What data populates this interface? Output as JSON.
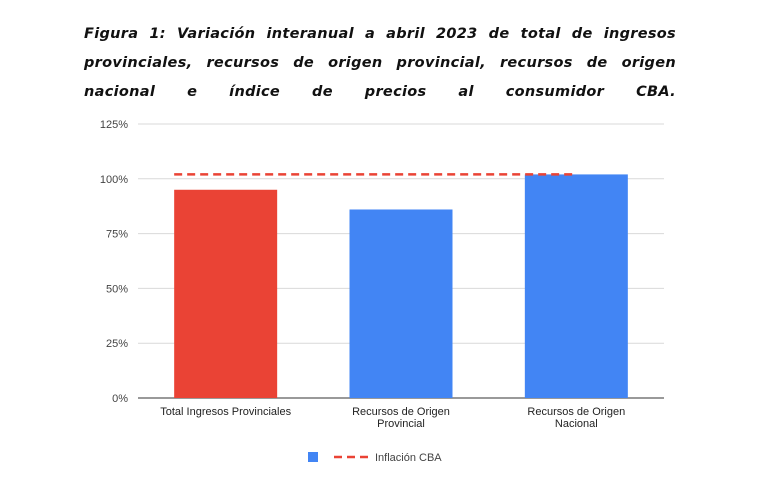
{
  "caption": "Figura 1: Variación interanual a abril 2023 de total de ingresos provinciales, recursos de origen provincial, recursos de origen nacional e índice de precios al consumidor CBA.",
  "chart_data": {
    "type": "bar",
    "categories": [
      [
        "Total Ingresos Provinciales"
      ],
      [
        "Recursos de Origen",
        "Provincial"
      ],
      [
        "Recursos de Origen",
        "Nacional"
      ]
    ],
    "values": [
      95,
      86,
      102
    ],
    "bar_colors": [
      "#ea4335",
      "#4285f4",
      "#4285f4"
    ],
    "reference_line": {
      "name": "Inflación CBA",
      "value": 102,
      "color": "#ea4335",
      "style": "dashed"
    },
    "ylim": [
      0,
      125
    ],
    "yticks": [
      0,
      25,
      50,
      75,
      100,
      125
    ],
    "ytick_labels": [
      "0%",
      "25%",
      "50%",
      "75%",
      "100%",
      "125%"
    ],
    "grid": true,
    "legend": {
      "placement": "bottom",
      "items": [
        {
          "name": "",
          "color": "#4285f4",
          "symbol": "square"
        },
        {
          "name": "Inflación CBA",
          "color": "#ea4335",
          "symbol": "dashed-line"
        }
      ]
    }
  }
}
